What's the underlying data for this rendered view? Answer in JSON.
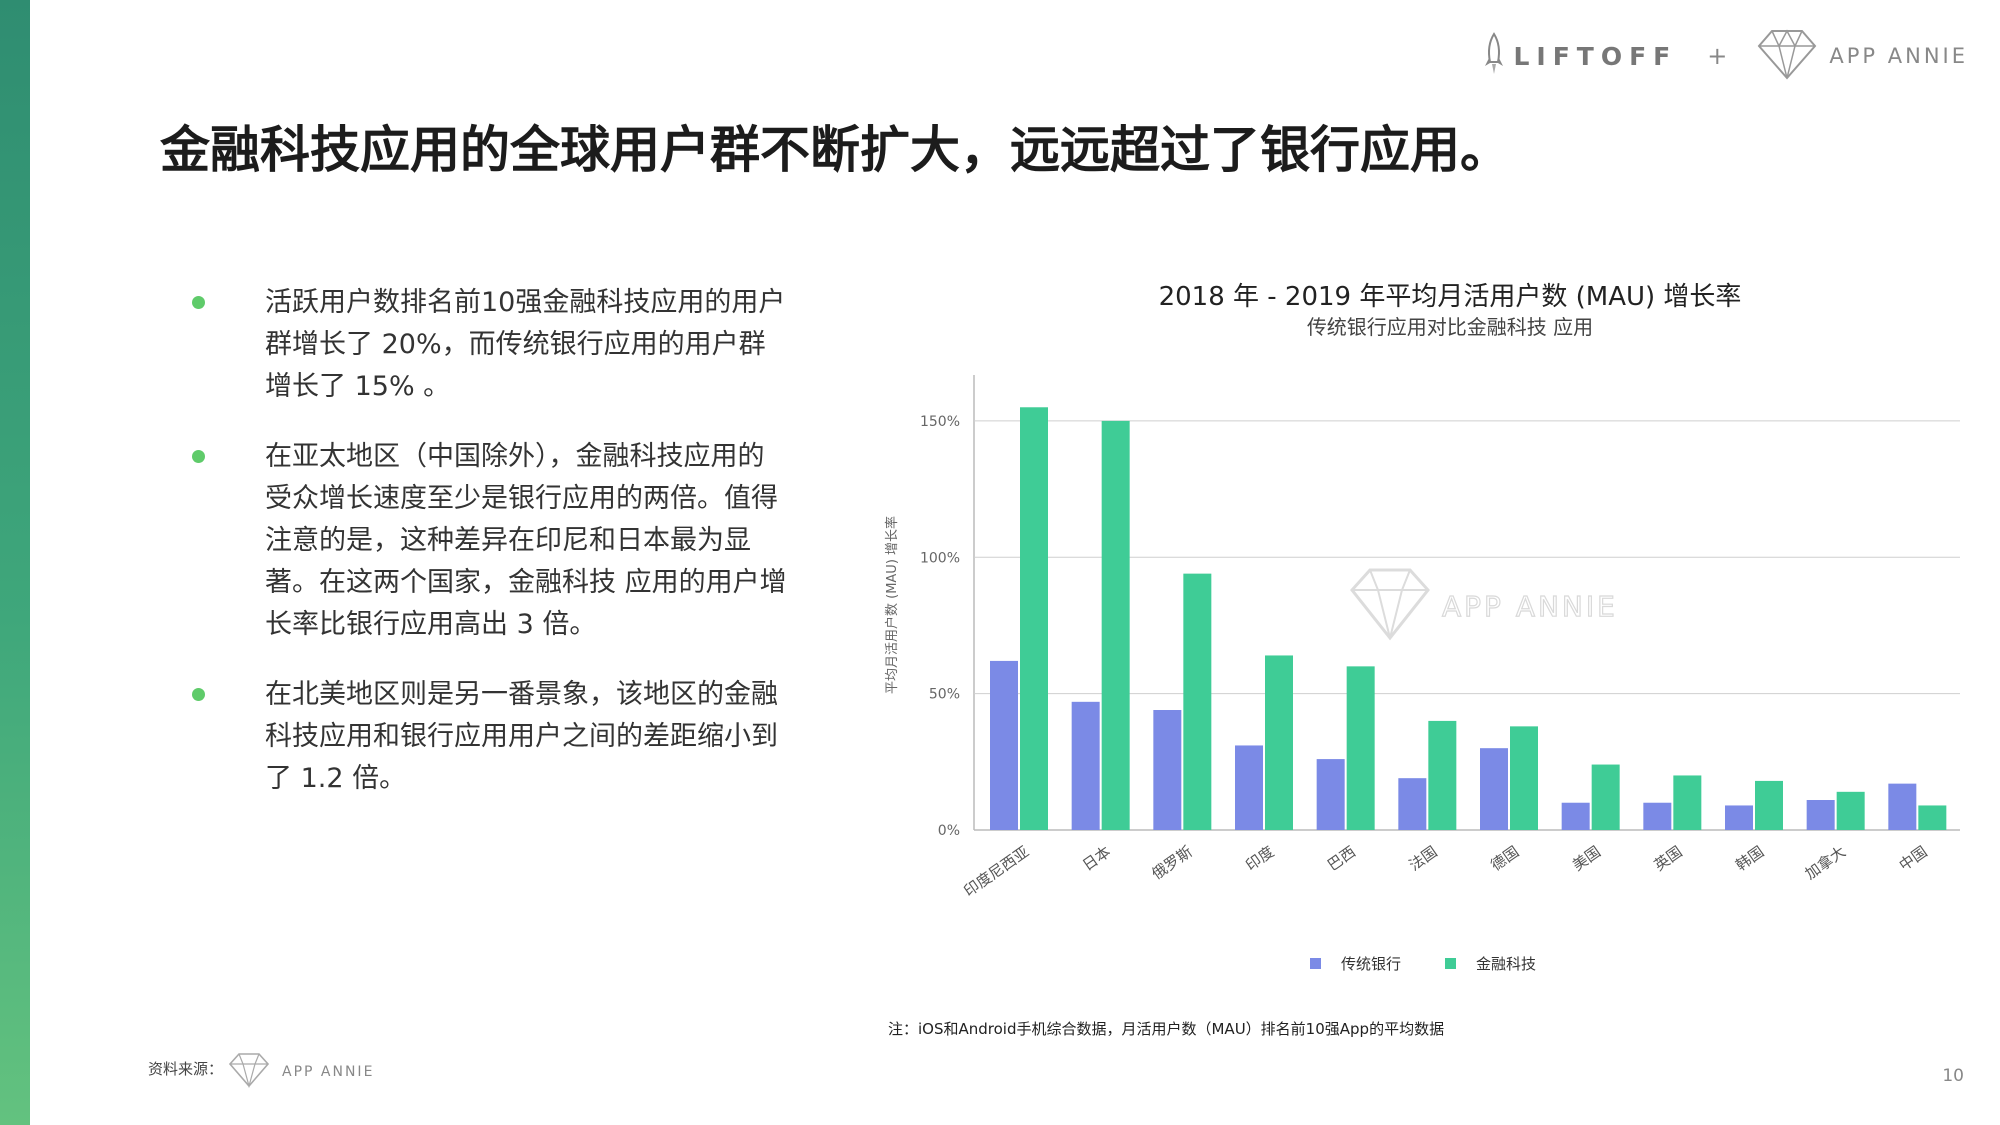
{
  "header": {
    "liftoff_logo_text": "LIFTOFF",
    "plus_sign": "+",
    "app_annie_logo_text": "APP ANNIE"
  },
  "title": "金融科技应用的全球用户群不断扩大，远远超过了银行应用。",
  "bullets": [
    "活跃用户数排名前10强金融科技应用的用户群增长了 20%，而传统银行应用的用户群增长了 15% 。",
    "在亚太地区（中国除外），金融科技应用的受众增长速度至少是银行应用的两倍。值得注意的是，这种差异在印尼和日本最为显著。在这两个国家，金融科技 应用的用户增长率比银行应用高出 3 倍。",
    "在北美地区则是另一番景象，该地区的金融科技应用和银行应用用户之间的差距缩小到了 1.2 倍。"
  ],
  "chart_data": {
    "type": "bar",
    "title": "2018 年 - 2019 年平均月活用户数 (MAU) 增长率",
    "subtitle": "传统银行应用对比金融科技 应用",
    "ylabel": "平均月活用户数 (MAU) 增长率",
    "xlabel": "",
    "ylim": [
      0,
      165
    ],
    "yticks": [
      0,
      50,
      100,
      150
    ],
    "ytick_labels": [
      "0%",
      "50%",
      "100%",
      "150%"
    ],
    "grid": true,
    "legend_position": "bottom",
    "categories": [
      "印度尼西亚",
      "日本",
      "俄罗斯",
      "印度",
      "巴西",
      "法国",
      "德国",
      "美国",
      "英国",
      "韩国",
      "加拿大",
      "中国"
    ],
    "series": [
      {
        "name": "传统银行",
        "color": "#7b8ae6",
        "values": [
          62,
          47,
          44,
          31,
          26,
          19,
          30,
          10,
          10,
          9,
          11,
          17
        ]
      },
      {
        "name": "金融科技",
        "color": "#3fcc96",
        "values": [
          155,
          150,
          94,
          64,
          60,
          40,
          38,
          24,
          20,
          18,
          14,
          9
        ]
      }
    ]
  },
  "watermark": "APP ANNIE",
  "note": "注：iOS和Android手机综合数据，月活用户数（MAU）排名前10强App的平均数据",
  "footer": {
    "source_label": "资料来源：",
    "source_logo_text": "APP ANNIE",
    "page_number": "10"
  }
}
